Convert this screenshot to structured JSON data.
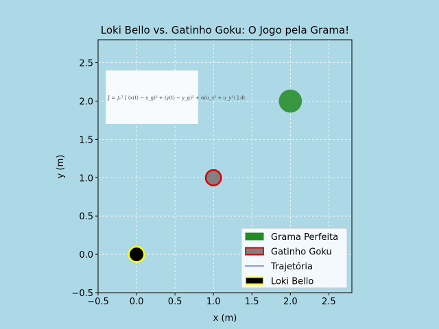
{
  "chart_data": {
    "type": "scatter",
    "title": "Loki Bello vs. Gatinho Goku: O Jogo pela Grama!",
    "xlabel": "x (m)",
    "ylabel": "y (m)",
    "xlim": [
      -0.5,
      2.8
    ],
    "ylim": [
      -0.5,
      2.8
    ],
    "xticks": [
      -0.5,
      0.0,
      0.5,
      1.0,
      1.5,
      2.0,
      2.5
    ],
    "yticks": [
      -0.5,
      0.0,
      0.5,
      1.0,
      1.5,
      2.0,
      2.5
    ],
    "xtick_labels": [
      "−0.5",
      "0.0",
      "0.5",
      "1.0",
      "1.5",
      "2.0",
      "2.5"
    ],
    "ytick_labels": [
      "−0.5",
      "0.0",
      "0.5",
      "1.0",
      "1.5",
      "2.0",
      "2.5"
    ],
    "grid": true,
    "legend_position": "bottom-right",
    "series": [
      {
        "name": "Grama Perfeita",
        "x": 2.0,
        "y": 2.0,
        "radius": 0.15,
        "fill": "#228b22",
        "edge": "#228b22"
      },
      {
        "name": "Gatinho Goku",
        "x": 1.0,
        "y": 1.0,
        "radius": 0.1,
        "fill": "#808080",
        "edge": "#e00000"
      },
      {
        "name": "Trajetória",
        "x": [],
        "y": [],
        "line": "#6a7fdb"
      },
      {
        "name": "Loki Bello",
        "x": 0.0,
        "y": 0.0,
        "radius": 0.1,
        "fill": "#000000",
        "edge": "#ffff00"
      }
    ],
    "annotation": {
      "text": "J = ∫₀ᵀ [ (x(t) − x_g)² + (y(t) − y_g)² + α(u_x² + u_y²) ] dt",
      "x_range": [
        -0.4,
        0.8
      ],
      "y_range": [
        1.7,
        2.4
      ]
    }
  },
  "colors": {
    "figure_bg": "#add8e6",
    "axes_bg": "#add8e6",
    "grid": "#ffffff"
  }
}
